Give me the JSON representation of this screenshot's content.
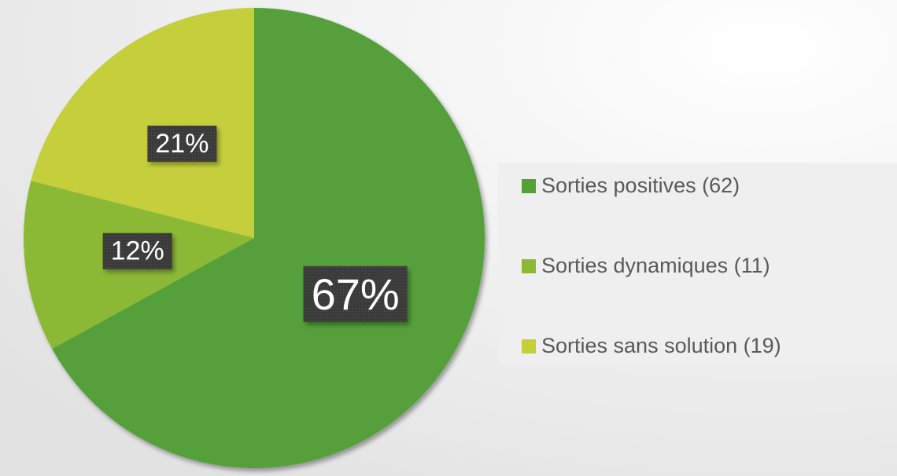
{
  "chart_data": {
    "type": "pie",
    "categories": [
      "Sorties positives (62)",
      "Sorties dynamiques (11)",
      "Sorties sans solution (19)"
    ],
    "values": [
      67,
      12,
      21
    ],
    "value_labels": [
      "67%",
      "12%",
      "21%"
    ],
    "colors": [
      "#54a03a",
      "#8cb934",
      "#c4cf3a"
    ]
  }
}
